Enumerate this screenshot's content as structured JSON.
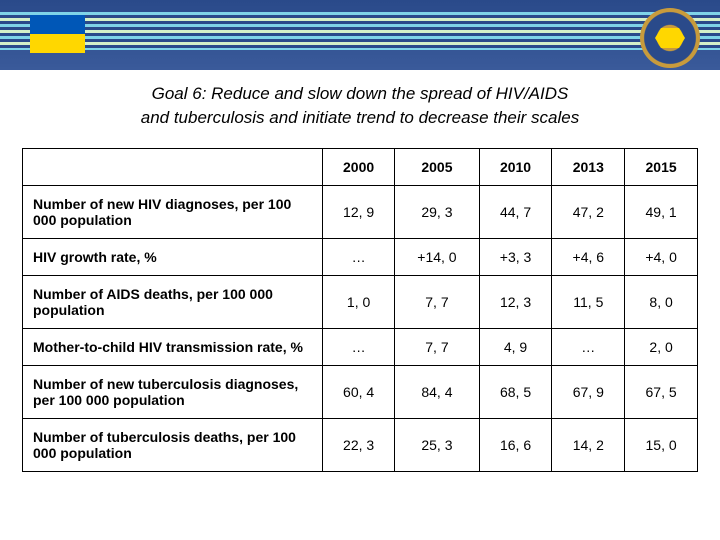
{
  "title_line1": "Goal 6: Reduce and slow down the spread of HIV/AIDS",
  "title_line2": "and  tuberculosis and initiate trend to decrease their scales",
  "table": {
    "columns": [
      "2000",
      "2005",
      "2010",
      "2013",
      "2015"
    ],
    "rows": [
      {
        "label": "Number of new HIV diagnoses, per 100 000 population",
        "values": [
          "12, 9",
          "29, 3",
          "44, 7",
          "47, 2",
          "49, 1"
        ]
      },
      {
        "label": "HIV growth rate, %",
        "values": [
          "…",
          "+14, 0",
          "+3, 3",
          "+4, 6",
          "+4, 0"
        ]
      },
      {
        "label": "Number of AIDS deaths, per 100 000 population",
        "values": [
          "1, 0",
          "7, 7",
          "12, 3",
          "11, 5",
          "8, 0"
        ]
      },
      {
        "label": "Mother-to-child HIV transmission rate, %",
        "values": [
          "…",
          "7, 7",
          "4, 9",
          "…",
          "2, 0"
        ]
      },
      {
        "label": "Number of new tuberculosis diagnoses, per 100 000 population",
        "values": [
          "60, 4",
          "84, 4",
          "68, 5",
          "67, 9",
          "67, 5"
        ]
      },
      {
        "label": "Number of tuberculosis deaths, per 100 000 population",
        "values": [
          "22, 3",
          "25, 3",
          "16, 6",
          "14, 2",
          "15, 0"
        ]
      }
    ]
  },
  "colors": {
    "banner_bg": "#2a4a8a",
    "wave_cyan": "#7fd4e8",
    "wave_green": "#d4f0c8",
    "flag_blue": "#0057b7",
    "flag_yellow": "#ffd700",
    "emblem_gold": "#c89b3c"
  }
}
